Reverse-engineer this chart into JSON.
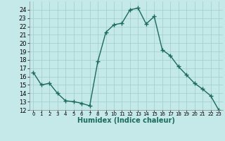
{
  "x": [
    0,
    1,
    2,
    3,
    4,
    5,
    6,
    7,
    8,
    9,
    10,
    11,
    12,
    13,
    14,
    15,
    16,
    17,
    18,
    19,
    20,
    21,
    22,
    23
  ],
  "y": [
    16.5,
    15.0,
    15.2,
    14.0,
    13.1,
    13.0,
    12.8,
    12.5,
    17.8,
    21.3,
    22.2,
    22.4,
    24.0,
    24.2,
    22.3,
    23.2,
    19.2,
    18.5,
    17.2,
    16.2,
    15.2,
    14.5,
    13.7,
    12.0
  ],
  "line_color": "#1a6b5a",
  "marker": "+",
  "marker_size": 4,
  "marker_linewidth": 1.0,
  "bg_color": "#c5e8e8",
  "grid_color": "#9ecece",
  "xlabel": "Humidex (Indice chaleur)",
  "xlabel_fontsize": 7,
  "ylim": [
    12,
    25
  ],
  "xlim": [
    -0.5,
    23.5
  ],
  "yticks": [
    12,
    13,
    14,
    15,
    16,
    17,
    18,
    19,
    20,
    21,
    22,
    23,
    24
  ],
  "xticks": [
    0,
    1,
    2,
    3,
    4,
    5,
    6,
    7,
    8,
    9,
    10,
    11,
    12,
    13,
    14,
    15,
    16,
    17,
    18,
    19,
    20,
    21,
    22,
    23
  ],
  "ytick_fontsize": 6,
  "xtick_fontsize": 5,
  "line_width": 1.0
}
